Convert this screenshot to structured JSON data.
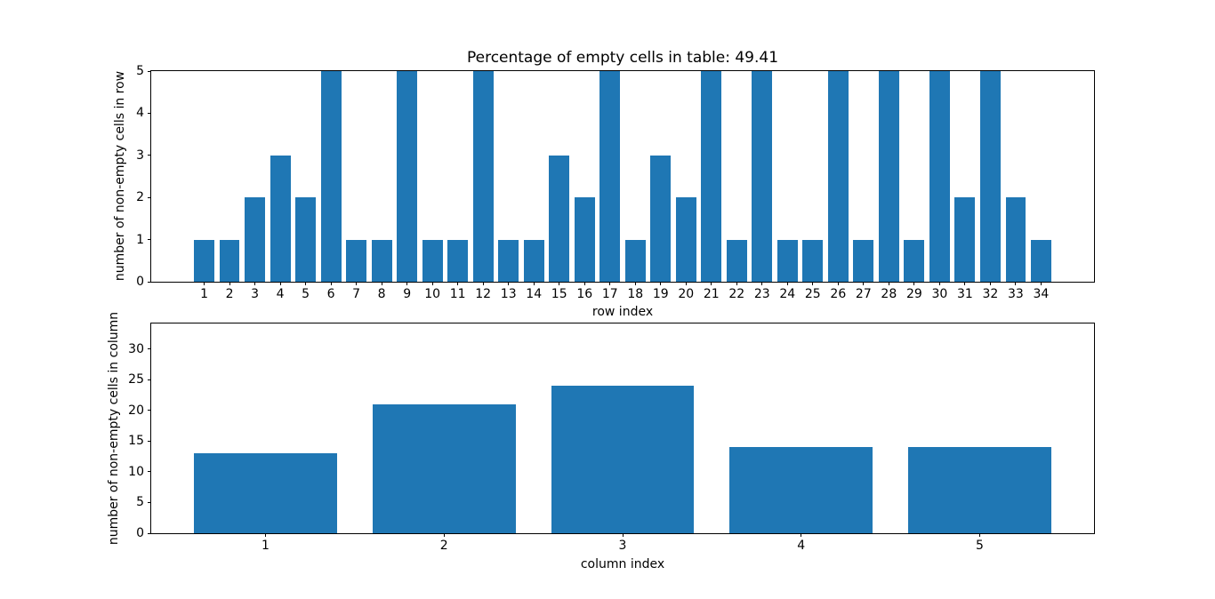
{
  "figure": {
    "background": "#ffffff",
    "bar_color": "#1f77b4"
  },
  "chart_data": [
    {
      "type": "bar",
      "title": "Percentage of empty cells in table: 49.41",
      "xlabel": "row index",
      "ylabel": "number of non-empty cells in row",
      "categories": [
        1,
        2,
        3,
        4,
        5,
        6,
        7,
        8,
        9,
        10,
        11,
        12,
        13,
        14,
        15,
        16,
        17,
        18,
        19,
        20,
        21,
        22,
        23,
        24,
        25,
        26,
        27,
        28,
        29,
        30,
        31,
        32,
        33,
        34
      ],
      "values": [
        1,
        1,
        2,
        3,
        2,
        5,
        1,
        1,
        5,
        1,
        1,
        5,
        1,
        1,
        3,
        2,
        5,
        1,
        3,
        2,
        5,
        1,
        5,
        1,
        1,
        5,
        1,
        5,
        1,
        5,
        2,
        5,
        2,
        1
      ],
      "xlim": [
        -1.09,
        36.09
      ],
      "ylim": [
        0,
        5
      ],
      "yticks": [
        0,
        1,
        2,
        3,
        4,
        5
      ],
      "bar_width": 0.8,
      "color": "#1f77b4",
      "grid": false,
      "legend": null
    },
    {
      "type": "bar",
      "title": "",
      "xlabel": "column index",
      "ylabel": "number of non-empty cells in column",
      "categories": [
        1,
        2,
        3,
        4,
        5
      ],
      "values": [
        13,
        21,
        24,
        14,
        14
      ],
      "xlim": [
        0.36,
        5.64
      ],
      "ylim": [
        0,
        34.2
      ],
      "yticks": [
        0,
        5,
        10,
        15,
        20,
        25,
        30
      ],
      "bar_width": 0.8,
      "color": "#1f77b4",
      "grid": false,
      "legend": null
    }
  ]
}
